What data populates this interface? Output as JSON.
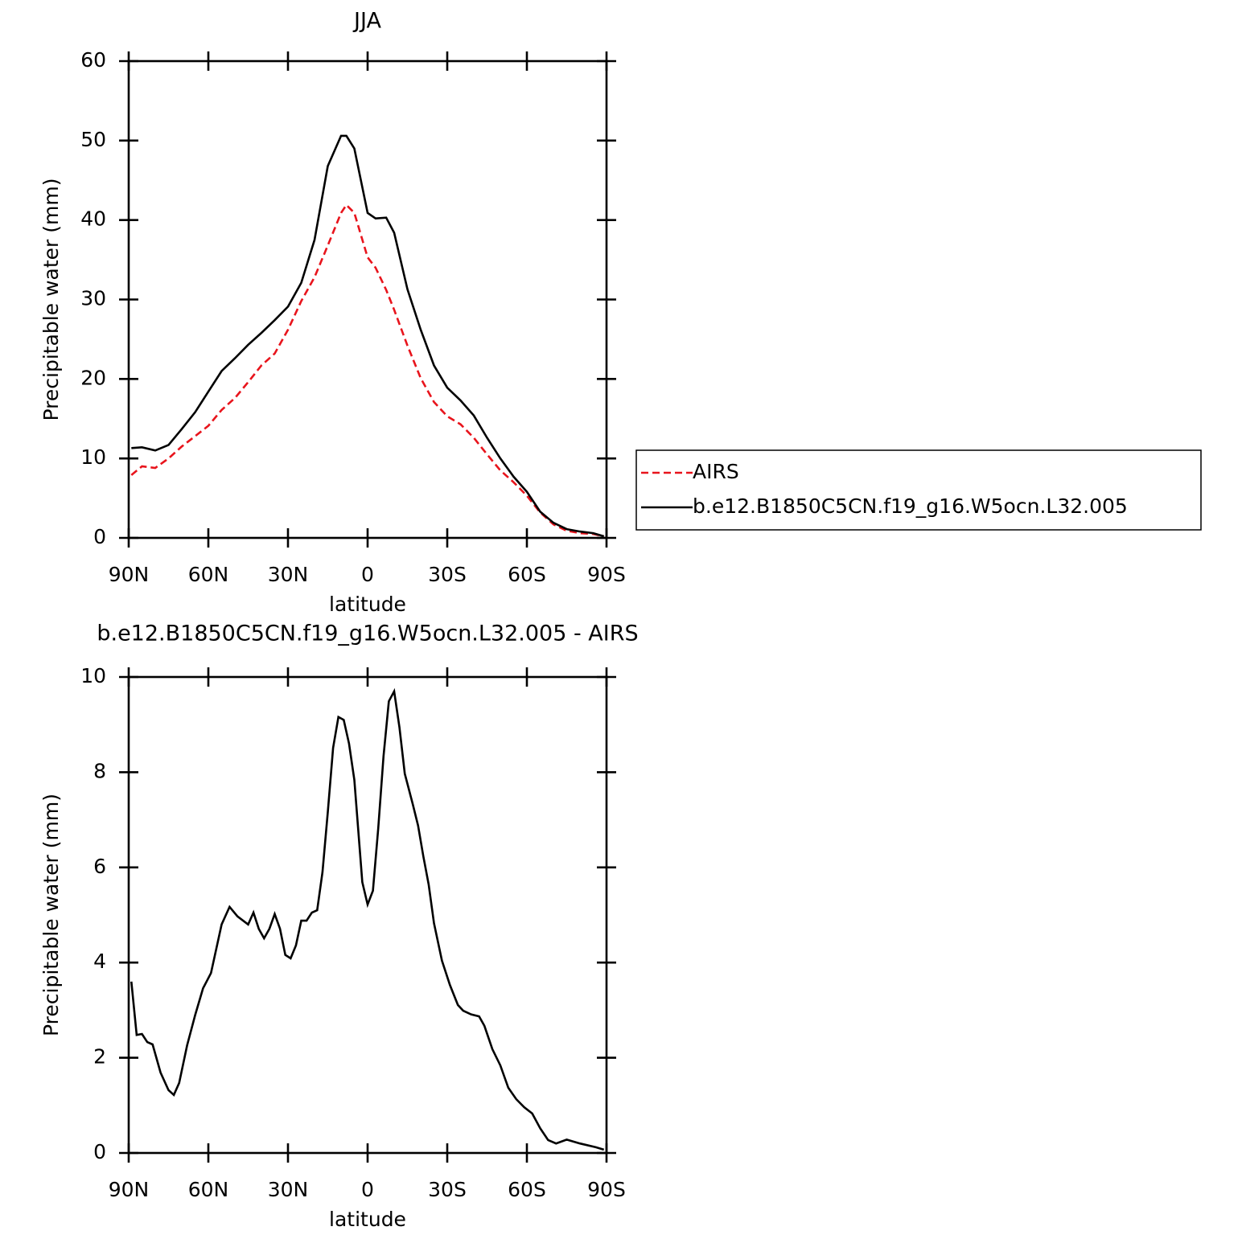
{
  "chart_data": [
    {
      "type": "line",
      "title": "JJA",
      "xlabel": "latitude",
      "ylabel": "Precipitable water (mm)",
      "x": [
        89,
        85,
        80,
        75,
        70,
        65,
        60,
        55,
        50,
        45,
        40,
        35,
        30,
        25,
        20,
        15,
        10,
        8,
        5,
        0,
        -3,
        -7,
        -10,
        -15,
        -20,
        -25,
        -30,
        -35,
        -40,
        -45,
        -50,
        -55,
        -60,
        -65,
        -70,
        -75,
        -80,
        -85,
        -89
      ],
      "series": [
        {
          "name": "AIRS",
          "color": "#e8141c",
          "linestyle": "dashed",
          "values": [
            7.9,
            9.0,
            8.8,
            10.0,
            11.5,
            12.8,
            14.1,
            16.1,
            17.6,
            19.6,
            21.7,
            23.2,
            26.2,
            29.8,
            32.8,
            36.8,
            40.9,
            41.9,
            40.9,
            35.3,
            34.0,
            31.2,
            28.7,
            24.2,
            20.1,
            17.1,
            15.3,
            14.3,
            12.6,
            10.5,
            8.5,
            7.0,
            5.3,
            3.2,
            1.7,
            0.9,
            0.6,
            0.5,
            0.2
          ]
        },
        {
          "name": "b.e12.B1850C5CN.f19_g16.W5ocn.L32.005",
          "color": "#000000",
          "linestyle": "solid",
          "values": [
            11.3,
            11.4,
            11.0,
            11.7,
            13.7,
            15.8,
            18.4,
            21.0,
            22.6,
            24.3,
            25.8,
            27.4,
            29.1,
            32.1,
            37.5,
            46.8,
            50.6,
            50.6,
            49.0,
            40.9,
            40.2,
            40.3,
            38.4,
            31.3,
            26.2,
            21.7,
            18.9,
            17.3,
            15.4,
            12.6,
            10.0,
            7.7,
            5.8,
            3.3,
            1.9,
            1.1,
            0.8,
            0.6,
            0.2
          ]
        }
      ],
      "xlim": [
        90,
        -90
      ],
      "xticks": [
        {
          "value": 90,
          "label": "90N"
        },
        {
          "value": 60,
          "label": "60N"
        },
        {
          "value": 30,
          "label": "30N"
        },
        0,
        {
          "value": -30,
          "label": "30S"
        },
        {
          "value": -60,
          "label": "60S"
        },
        {
          "value": -90,
          "label": "90S"
        }
      ],
      "ylim": [
        0,
        60
      ],
      "yticks": [
        0,
        10,
        20,
        30,
        40,
        50,
        60
      ],
      "legend": "right"
    },
    {
      "type": "line",
      "title": "b.e12.B1850C5CN.f19_g16.W5ocn.L32.005 - AIRS",
      "xlabel": "latitude",
      "ylabel": "Precipitable water (mm)",
      "x": [
        89,
        87,
        85,
        83,
        81,
        78,
        75,
        73,
        71,
        68,
        65,
        62,
        59,
        57,
        55,
        52,
        49,
        45,
        43,
        41,
        39,
        37,
        35,
        33,
        31,
        29,
        27,
        25,
        23,
        21,
        19,
        17,
        15,
        13,
        11,
        9,
        7,
        5,
        2,
        0,
        -2,
        -4,
        -6,
        -8,
        -10,
        -12,
        -14,
        -17,
        -19,
        -21,
        -23,
        -25,
        -28,
        -31,
        -34,
        -36,
        -39,
        -42,
        -44,
        -47,
        -50,
        -53,
        -56,
        -59,
        -62,
        -65,
        -68,
        -71,
        -75,
        -80,
        -86,
        -89
      ],
      "series": [
        {
          "color": "#000000",
          "linestyle": "solid",
          "values": [
            3.6,
            2.48,
            2.5,
            2.33,
            2.28,
            1.69,
            1.32,
            1.22,
            1.47,
            2.26,
            2.89,
            3.46,
            3.78,
            4.29,
            4.8,
            5.17,
            4.97,
            4.8,
            5.05,
            4.71,
            4.51,
            4.71,
            5.02,
            4.71,
            4.16,
            4.09,
            4.36,
            4.88,
            4.88,
            5.05,
            5.1,
            5.9,
            7.16,
            8.51,
            9.16,
            9.1,
            8.6,
            7.84,
            5.69,
            5.22,
            5.51,
            6.82,
            8.34,
            9.49,
            9.7,
            8.94,
            7.97,
            7.33,
            6.88,
            6.23,
            5.64,
            4.83,
            4.04,
            3.53,
            3.11,
            2.99,
            2.91,
            2.87,
            2.67,
            2.18,
            1.84,
            1.37,
            1.13,
            0.96,
            0.83,
            0.52,
            0.27,
            0.2,
            0.28,
            0.2,
            0.12,
            0.07
          ]
        }
      ],
      "xlim": [
        90,
        -90
      ],
      "xticks": [
        {
          "value": 90,
          "label": "90N"
        },
        {
          "value": 60,
          "label": "60N"
        },
        {
          "value": 30,
          "label": "30N"
        },
        0,
        {
          "value": -30,
          "label": "30S"
        },
        {
          "value": -60,
          "label": "60S"
        },
        {
          "value": -90,
          "label": "90S"
        }
      ],
      "ylim": [
        0,
        10
      ],
      "yticks": [
        0,
        2,
        4,
        6,
        8,
        10
      ]
    }
  ]
}
